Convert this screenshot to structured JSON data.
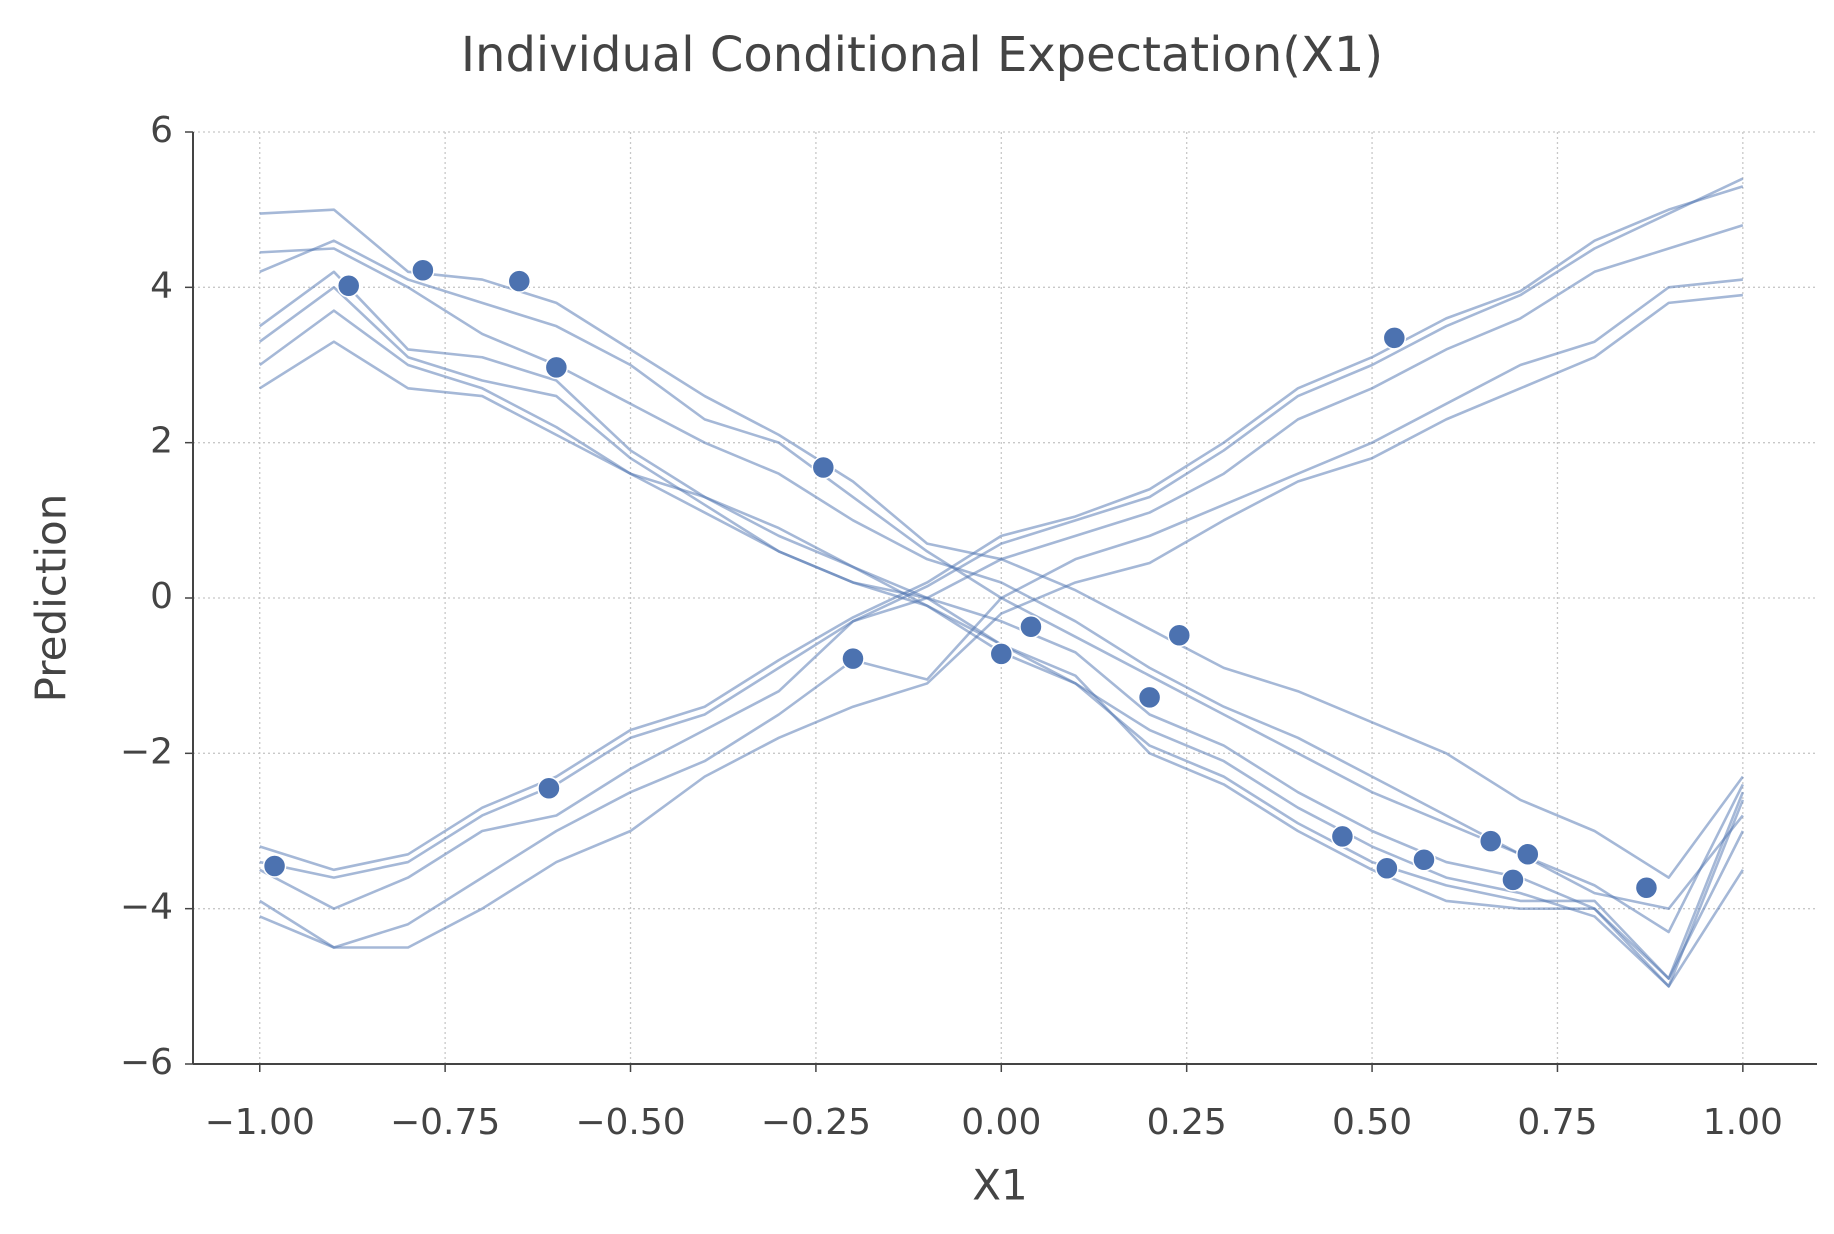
{
  "chart_data": {
    "type": "line",
    "title": "Individual Conditional Expectation(X1)",
    "x_label": "X1",
    "y_label": "Prediction",
    "color": "#4c72b0",
    "grid": true,
    "xlim": [
      -1.09,
      1.1
    ],
    "ylim": [
      -6,
      6
    ],
    "xticks": [
      {
        "value": -1,
        "label": "−1.00"
      },
      {
        "value": -0.75,
        "label": "−0.75"
      },
      {
        "value": -0.5,
        "label": "−0.50"
      },
      {
        "value": -0.25,
        "label": "−0.25"
      },
      {
        "value": 0,
        "label": "0.00"
      },
      {
        "value": 0.25,
        "label": "0.25"
      },
      {
        "value": 0.5,
        "label": "0.50"
      },
      {
        "value": 0.75,
        "label": "0.75"
      },
      {
        "value": 1,
        "label": "1.00"
      }
    ],
    "yticks": [
      {
        "value": -6,
        "label": "−6"
      },
      {
        "value": -4,
        "label": "−4"
      },
      {
        "value": -2,
        "label": "−2"
      },
      0,
      2,
      4,
      6
    ],
    "x": [
      -1,
      -0.9,
      -0.8,
      -0.7,
      -0.6,
      -0.5,
      -0.4,
      -0.3,
      -0.2,
      -0.1,
      0,
      0.1,
      0.2,
      0.3,
      0.4,
      0.5,
      0.6,
      0.7,
      0.8,
      0.9,
      1
    ],
    "series": [
      {
        "values": [
          4.95,
          5.0,
          4.2,
          4.1,
          3.8,
          3.2,
          2.6,
          2.1,
          1.5,
          0.7,
          0.5,
          0.1,
          -0.4,
          -0.9,
          -1.2,
          -1.6,
          -2.0,
          -2.6,
          -3.0,
          -3.6,
          -2.3
        ]
      },
      {
        "values": [
          4.45,
          4.5,
          4.0,
          3.4,
          3.0,
          2.5,
          2.0,
          1.6,
          1.0,
          0.5,
          0.2,
          -0.3,
          -0.9,
          -1.4,
          -1.8,
          -2.3,
          -2.8,
          -3.3,
          -3.7,
          -4.3,
          -2.4
        ]
      },
      {
        "values": [
          4.2,
          4.6,
          4.1,
          3.8,
          3.5,
          3.0,
          2.3,
          2.0,
          1.3,
          0.6,
          0.0,
          -0.5,
          -1.0,
          -1.5,
          -2.0,
          -2.5,
          -2.9,
          -3.3,
          -3.8,
          -4.0,
          -2.8
        ]
      },
      {
        "values": [
          3.5,
          4.2,
          3.2,
          3.1,
          2.8,
          1.9,
          1.3,
          0.9,
          0.4,
          0.0,
          -0.3,
          -0.7,
          -1.5,
          -1.9,
          -2.5,
          -3.0,
          -3.4,
          -3.6,
          -4.0,
          -4.9,
          -2.5
        ]
      },
      {
        "values": [
          3.3,
          4.0,
          3.1,
          2.8,
          2.6,
          1.8,
          1.2,
          0.6,
          0.2,
          -0.1,
          -0.6,
          -1.1,
          -1.7,
          -2.1,
          -2.7,
          -3.2,
          -3.6,
          -3.8,
          -4.1,
          -5.0,
          -2.6
        ]
      },
      {
        "values": [
          3.0,
          3.7,
          3.0,
          2.7,
          2.2,
          1.6,
          1.3,
          0.8,
          0.4,
          -0.1,
          -0.7,
          -1.1,
          -1.9,
          -2.3,
          -2.9,
          -3.4,
          -3.7,
          -3.9,
          -3.9,
          -4.9,
          -3.0
        ]
      },
      {
        "values": [
          2.7,
          3.3,
          2.7,
          2.6,
          2.1,
          1.6,
          1.1,
          0.6,
          0.2,
          0.0,
          -0.6,
          -1.0,
          -2.0,
          -2.4,
          -3.0,
          -3.5,
          -3.9,
          -4.0,
          -4.0,
          -5.0,
          -3.5
        ]
      },
      {
        "values": [
          -3.2,
          -3.5,
          -3.3,
          -2.7,
          -2.3,
          -1.7,
          -1.4,
          -0.8,
          -0.25,
          0.2,
          0.8,
          1.05,
          1.4,
          2.0,
          2.7,
          3.1,
          3.6,
          3.95,
          4.6,
          5.0,
          5.3
        ]
      },
      {
        "values": [
          -3.4,
          -3.6,
          -3.4,
          -2.8,
          -2.4,
          -1.8,
          -1.5,
          -0.9,
          -0.3,
          0.15,
          0.7,
          1.0,
          1.3,
          1.9,
          2.6,
          3.0,
          3.5,
          3.9,
          4.5,
          4.95,
          5.4
        ]
      },
      {
        "values": [
          -3.5,
          -4.0,
          -3.6,
          -3.0,
          -2.8,
          -2.2,
          -1.7,
          -1.2,
          -0.3,
          0.0,
          0.5,
          0.8,
          1.1,
          1.6,
          2.3,
          2.7,
          3.2,
          3.6,
          4.2,
          4.5,
          4.8
        ]
      },
      {
        "values": [
          -3.9,
          -4.5,
          -4.2,
          -3.6,
          -3.0,
          -2.5,
          -2.1,
          -1.5,
          -0.8,
          -1.05,
          0.0,
          0.5,
          0.8,
          1.2,
          1.6,
          2.0,
          2.5,
          3.0,
          3.3,
          4.0,
          4.1
        ]
      },
      {
        "values": [
          -4.1,
          -4.5,
          -4.5,
          -4.0,
          -3.4,
          -3.0,
          -2.3,
          -1.8,
          -1.4,
          -1.1,
          -0.2,
          0.2,
          0.45,
          1.0,
          1.5,
          1.8,
          2.3,
          2.7,
          3.1,
          3.8,
          3.9
        ]
      }
    ],
    "points": {
      "x": [
        -0.98,
        -0.88,
        -0.78,
        -0.65,
        -0.6,
        -0.61,
        -0.24,
        -0.2,
        0.0,
        0.04,
        0.2,
        0.24,
        0.46,
        0.52,
        0.53,
        0.57,
        0.66,
        0.69,
        0.71,
        0.87
      ],
      "y": [
        -3.45,
        4.02,
        4.22,
        4.08,
        2.97,
        -2.45,
        1.68,
        -0.78,
        -0.72,
        -0.37,
        -1.28,
        -0.48,
        -3.07,
        -3.48,
        3.35,
        -3.37,
        -3.13,
        -3.63,
        -3.3,
        -3.73
      ]
    }
  }
}
